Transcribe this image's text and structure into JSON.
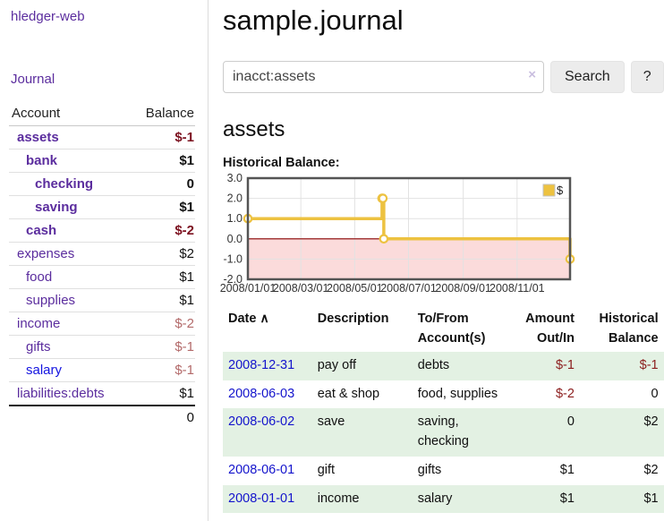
{
  "sidebar": {
    "brand": "hledger-web",
    "journal_link": "Journal",
    "accounts": {
      "header": {
        "account": "Account",
        "balance": "Balance"
      },
      "rows": [
        {
          "name": "assets",
          "balance": "$-1"
        },
        {
          "name": "bank",
          "balance": "$1"
        },
        {
          "name": "checking",
          "balance": "0"
        },
        {
          "name": "saving",
          "balance": "$1"
        },
        {
          "name": "cash",
          "balance": "$-2"
        },
        {
          "name": "expenses",
          "balance": "$2"
        },
        {
          "name": "food",
          "balance": "$1"
        },
        {
          "name": "supplies",
          "balance": "$1"
        },
        {
          "name": "income",
          "balance": "$-2"
        },
        {
          "name": "gifts",
          "balance": "$-1"
        },
        {
          "name": "salary",
          "balance": "$-1"
        },
        {
          "name": "liabilities:debts",
          "balance": "$1"
        }
      ],
      "total": "0"
    }
  },
  "header": {
    "title": "sample.journal"
  },
  "search": {
    "query": "inacct:assets",
    "clear_icon": "×",
    "search_button": "Search",
    "help_button": "?"
  },
  "main": {
    "account_heading": "assets",
    "chart_label": "Historical Balance:"
  },
  "chart_data": {
    "type": "line",
    "step": true,
    "title": "Historical Balance",
    "series": [
      {
        "name": "$",
        "color": "#edc240",
        "points": [
          [
            "2008-01-01",
            1
          ],
          [
            "2008-06-01",
            2
          ],
          [
            "2008-06-02",
            2
          ],
          [
            "2008-06-03",
            0
          ],
          [
            "2008-12-31",
            -1
          ]
        ]
      }
    ],
    "x_range": [
      "2008-01-01",
      "2008-12-31"
    ],
    "ylim": [
      -2,
      3
    ],
    "y_ticks": [
      3,
      2,
      1,
      0,
      -1,
      -2
    ],
    "x_ticks": [
      {
        "date": "2008-01-01",
        "label": "2008/01/01"
      },
      {
        "date": "2008-03-01",
        "label": "2008/03/01"
      },
      {
        "date": "2008-05-01",
        "label": "2008/05/01"
      },
      {
        "date": "2008-07-01",
        "label": "2008/07/01"
      },
      {
        "date": "2008-09-01",
        "label": "2008/09/01"
      },
      {
        "date": "2008-11-01",
        "label": "2008/11/01"
      }
    ],
    "grid": true,
    "legend_position": "top-right",
    "zero_line_color": "#8b0000",
    "negative_region_color": "#fbdbdb",
    "border_color": "#545454",
    "grid_color": "#e2e2e2"
  },
  "register": {
    "headers": {
      "date": "Date",
      "sort_icon": "∧",
      "description": "Description",
      "accounts": "To/From Account(s)",
      "amount": "Amount Out/In",
      "balance": "Historical Balance"
    },
    "rows": [
      {
        "date": "2008-12-31",
        "description": "pay off",
        "accounts": "debts",
        "amount": "$-1",
        "balance": "$-1"
      },
      {
        "date": "2008-06-03",
        "description": "eat & shop",
        "accounts": "food, supplies",
        "amount": "$-2",
        "balance": "0"
      },
      {
        "date": "2008-06-02",
        "description": "save",
        "accounts": "saving, checking",
        "amount": "0",
        "balance": "$2"
      },
      {
        "date": "2008-06-01",
        "description": "gift",
        "accounts": "gifts",
        "amount": "$1",
        "balance": "$2"
      },
      {
        "date": "2008-01-01",
        "description": "income",
        "accounts": "salary",
        "amount": "$1",
        "balance": "$1"
      }
    ]
  },
  "colors": {
    "link_purple": "#5b2d9e",
    "link_blue": "#1414e0",
    "date_link_blue": "#1414cc",
    "negative_strong": "#7c1220",
    "negative": "#8b1c1c",
    "negative_muted": "#b36a6a",
    "row_stripe_green": "#e3f1e3",
    "series_gold": "#edc240"
  }
}
